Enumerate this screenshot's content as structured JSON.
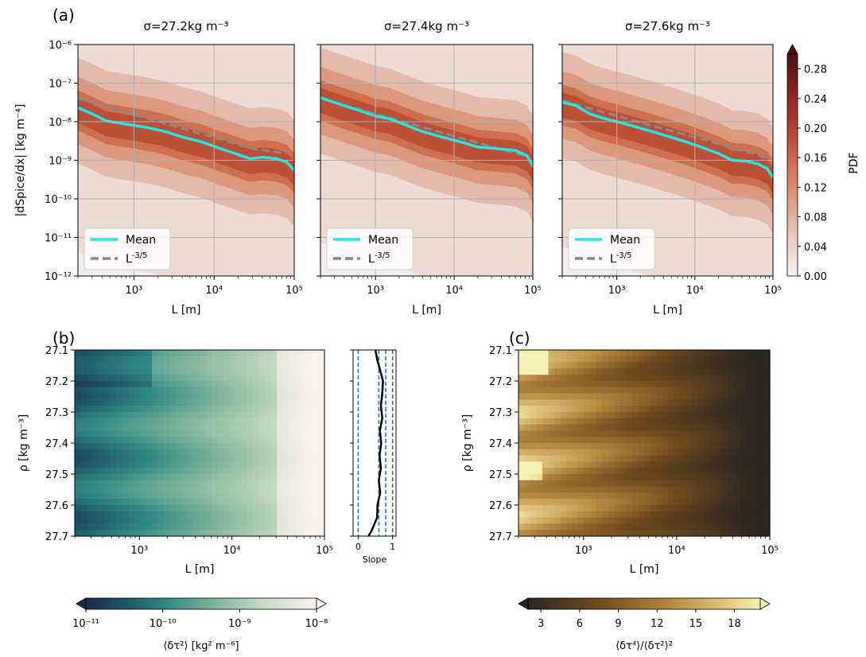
{
  "panel_labels": {
    "a": "(a)",
    "b": "(b)",
    "c": "(c)"
  },
  "chart_data": [
    {
      "id": "a1",
      "type": "line",
      "title": "σ=27.2kg m⁻³",
      "xlabel": "L [m]",
      "ylabel": "|dSpice/dx| [kg m⁻⁴]",
      "xscale": "log",
      "yscale": "log",
      "xlim": [
        200,
        100000
      ],
      "ylim": [
        1e-12,
        1e-06
      ],
      "grid": true,
      "legend_position": "lower-left",
      "background": "PDF-shaded",
      "series": [
        {
          "name": "Mean",
          "color": "#22e6e6",
          "style": "solid",
          "x": [
            200,
            300,
            450,
            700,
            1000,
            1500,
            2500,
            4000,
            7000,
            12000,
            20000,
            28000,
            40000,
            60000,
            80000,
            100000
          ],
          "y": [
            2.3e-08,
            1.6e-08,
            1.05e-08,
            9e-09,
            8e-09,
            7e-09,
            5.5e-09,
            4e-09,
            3e-09,
            2e-09,
            1.4e-09,
            1.1e-09,
            1.2e-09,
            1.1e-09,
            9e-10,
            5.5e-10
          ]
        },
        {
          "name": "L^{-3/5}",
          "color": "#888888",
          "style": "dashed",
          "x": [
            200,
            30000,
            80000
          ],
          "y": [
            4e-08,
            2e-09,
            1.5e-09
          ]
        }
      ]
    },
    {
      "id": "a2",
      "type": "line",
      "title": "σ=27.4kg m⁻³",
      "xlabel": "L [m]",
      "xscale": "log",
      "yscale": "log",
      "xlim": [
        200,
        100000
      ],
      "ylim": [
        1e-12,
        1e-06
      ],
      "grid": true,
      "legend_position": "lower-left",
      "background": "PDF-shaded",
      "series": [
        {
          "name": "Mean",
          "color": "#22e6e6",
          "style": "solid",
          "x": [
            200,
            400,
            700,
            1000,
            1500,
            2500,
            4000,
            7000,
            12000,
            20000,
            35000,
            60000,
            85000,
            100000
          ],
          "y": [
            4.2e-08,
            2.6e-08,
            1.8e-08,
            1.4e-08,
            1.2e-08,
            8e-09,
            5.5e-09,
            4e-09,
            3e-09,
            2.2e-09,
            2e-09,
            1.8e-09,
            1.3e-09,
            7e-10
          ]
        },
        {
          "name": "L^{-3/5}",
          "color": "#888888",
          "style": "dashed",
          "x": [
            200,
            90000
          ],
          "y": [
            4e-08,
            1.2e-09
          ]
        }
      ]
    },
    {
      "id": "a3",
      "type": "line",
      "title": "σ=27.6kg m⁻³",
      "xlabel": "L [m]",
      "xscale": "log",
      "yscale": "log",
      "xlim": [
        200,
        100000
      ],
      "ylim": [
        1e-12,
        1e-06
      ],
      "grid": true,
      "legend_position": "lower-left",
      "background": "PDF-shaded",
      "colorbar": {
        "label": "PDF",
        "min": 0.0,
        "max": 0.3,
        "ticks": [
          "0.00",
          "0.04",
          "0.08",
          "0.12",
          "0.16",
          "0.20",
          "0.24",
          "0.28"
        ],
        "values": [
          0,
          0.04,
          0.08,
          0.12,
          0.16,
          0.2,
          0.24,
          0.28
        ]
      },
      "series": [
        {
          "name": "Mean",
          "color": "#22e6e6",
          "style": "solid",
          "x": [
            200,
            300,
            450,
            700,
            1000,
            1500,
            2500,
            4000,
            7000,
            12000,
            20000,
            30000,
            45000,
            65000,
            85000,
            100000
          ],
          "y": [
            3.2e-08,
            2.6e-08,
            1.6e-08,
            1.2e-08,
            1e-08,
            8e-09,
            6e-09,
            4.5e-09,
            3.2e-09,
            2.2e-09,
            1.5e-09,
            1e-09,
            9.5e-10,
            8e-10,
            6e-10,
            3.5e-10
          ]
        },
        {
          "name": "L^{-3/5}",
          "color": "#888888",
          "style": "dashed",
          "x": [
            200,
            50000,
            100000
          ],
          "y": [
            3.5e-08,
            1.6e-09,
            1e-09
          ]
        }
      ]
    },
    {
      "id": "b",
      "type": "heatmap",
      "xlabel": "L [m]",
      "ylabel": "ρ [kg m⁻³]",
      "xscale": "log",
      "xlim": [
        200,
        100000
      ],
      "ylim": [
        27.1,
        27.7
      ],
      "yticks": [
        "27.1",
        "27.2",
        "27.3",
        "27.4",
        "27.5",
        "27.6",
        "27.7"
      ],
      "colorbar": {
        "label": "⟨δτ²⟩ [kg² m⁻⁶]",
        "scale": "log",
        "min": 1e-11,
        "max": 1e-08,
        "ticks": [
          "10⁻¹¹",
          "10⁻¹⁰",
          "10⁻⁹",
          "10⁻⁸"
        ]
      }
    },
    {
      "id": "b_slope",
      "type": "line",
      "xlabel": "Slope",
      "xlim": [
        -0.15,
        1.1
      ],
      "ylim": [
        27.1,
        27.7
      ],
      "xticks": [
        "0",
        "1"
      ],
      "reference_lines": [
        0,
        0.6,
        0.8,
        1.0
      ],
      "series": [
        {
          "name": "",
          "color": "#000000",
          "y": [
            27.1,
            27.13,
            27.17,
            27.2,
            27.24,
            27.28,
            27.32,
            27.36,
            27.4,
            27.44,
            27.48,
            27.52,
            27.56,
            27.6,
            27.64,
            27.68,
            27.7
          ],
          "x": [
            0.5,
            0.55,
            0.65,
            0.72,
            0.7,
            0.66,
            0.7,
            0.63,
            0.67,
            0.62,
            0.66,
            0.6,
            0.64,
            0.56,
            0.55,
            0.4,
            0.3
          ]
        }
      ]
    },
    {
      "id": "c",
      "type": "heatmap",
      "xlabel": "L [m]",
      "ylabel": "ρ [kg m⁻³]",
      "xscale": "log",
      "xlim": [
        200,
        100000
      ],
      "ylim": [
        27.1,
        27.7
      ],
      "yticks": [
        "27.1",
        "27.2",
        "27.3",
        "27.4",
        "27.5",
        "27.6",
        "27.7"
      ],
      "colorbar": {
        "label": "⟨δτ⁴⟩/⟨δτ²⟩²",
        "min": 2,
        "max": 20,
        "ticks": [
          "3",
          "6",
          "9",
          "12",
          "15",
          "18"
        ],
        "values": [
          3,
          6,
          9,
          12,
          15,
          18
        ]
      }
    }
  ]
}
